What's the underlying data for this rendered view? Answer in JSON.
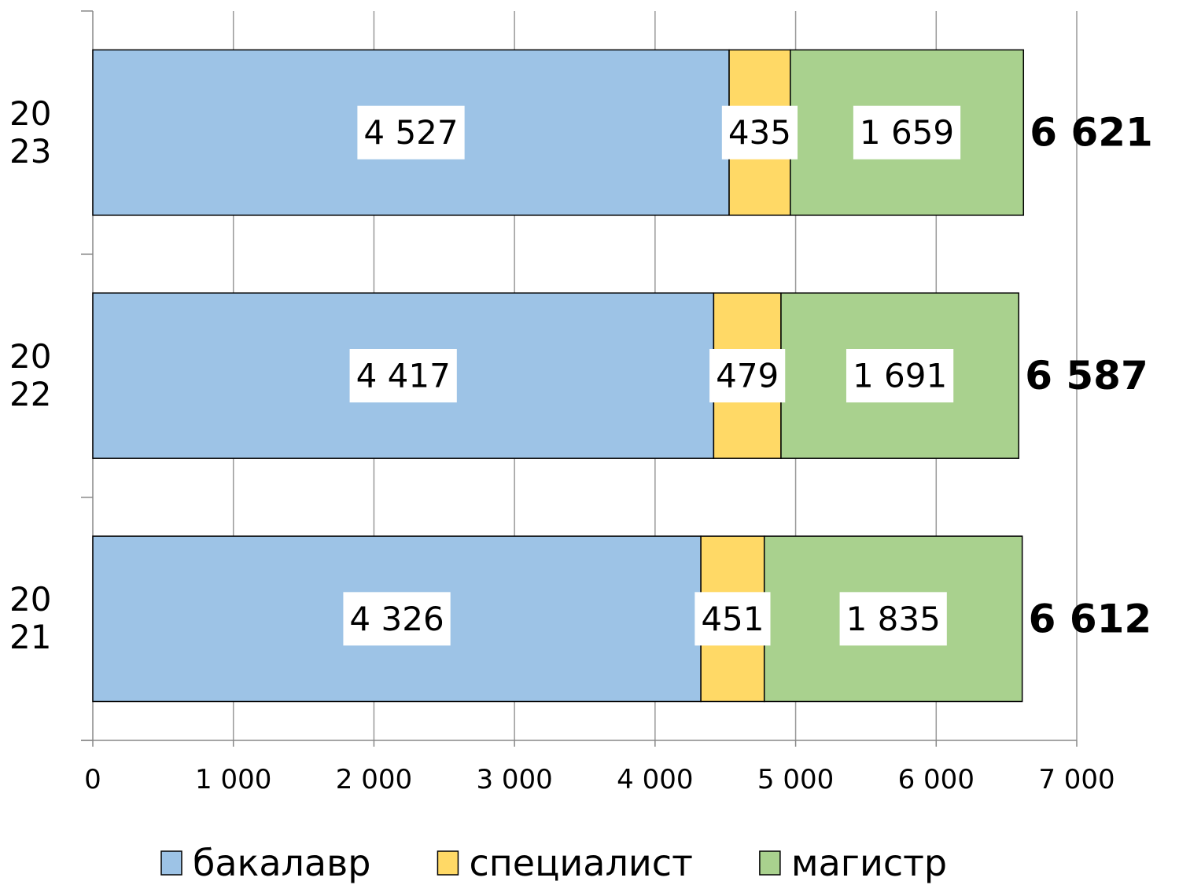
{
  "chart_data": {
    "type": "stacked-barh",
    "categories": [
      "2021",
      "2022",
      "2023"
    ],
    "series": [
      {
        "name": "бакалавр",
        "color": "#9dc3e6",
        "values": [
          4326,
          4417,
          4527
        ],
        "value_labels": [
          "4 326",
          "4 417",
          "4 527"
        ]
      },
      {
        "name": "специалист",
        "color": "#ffd966",
        "values": [
          451,
          479,
          435
        ]
      },
      {
        "name": "магистр",
        "color": "#a9d18e",
        "values": [
          1835,
          1691,
          1659
        ],
        "value_labels": [
          "1 835",
          "1 691",
          "1 659"
        ]
      }
    ],
    "totals": [
      6612,
      6587,
      6621
    ],
    "total_labels": [
      "6 612",
      "6 587",
      "6 621"
    ],
    "xlim": [
      0,
      7000
    ],
    "xticks": [
      0,
      {
        "value": 1000,
        "label": "1 000"
      },
      {
        "value": 2000,
        "label": "2 000"
      },
      {
        "value": 3000,
        "label": "3 000"
      },
      {
        "value": 4000,
        "label": "4 000"
      },
      {
        "value": 5000,
        "label": "5 000"
      },
      {
        "value": 6000,
        "label": "6 000"
      },
      {
        "value": 7000,
        "label": "7 000"
      }
    ],
    "grid": true,
    "legend": "bottom"
  }
}
